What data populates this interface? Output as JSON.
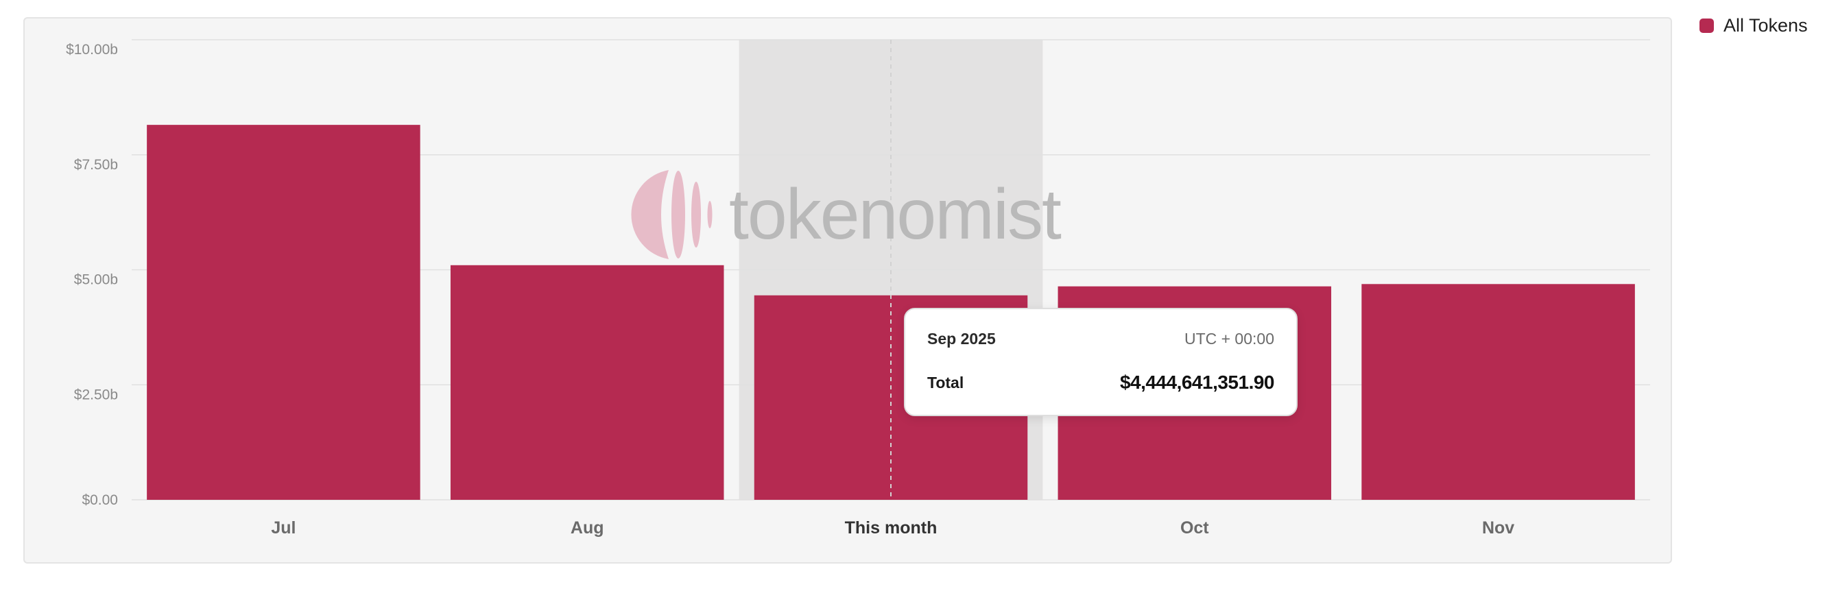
{
  "legend": {
    "label": "All Tokens",
    "color": "#b52a51"
  },
  "watermark": {
    "text": "tokenomist"
  },
  "tooltip": {
    "period": "Sep 2025",
    "timezone": "UTC + 00:00",
    "total_label": "Total",
    "total_value": "$4,444,641,351.90"
  },
  "colors": {
    "bar": "#b52a51",
    "highlight": "#e3e2e2",
    "grid": "#e0e0e0",
    "tick_text": "#8a8a8a",
    "category_text": "#6a6a6a",
    "category_active_text": "#333333"
  },
  "chart_data": {
    "type": "bar",
    "categories": [
      "Jul",
      "Aug",
      "This month",
      "Oct",
      "Nov"
    ],
    "highlighted_category": "This month",
    "series": [
      {
        "name": "All Tokens",
        "values": [
          8.15,
          5.1,
          4.444641,
          4.64,
          4.69
        ]
      }
    ],
    "y_ticks": [
      "$0.00",
      "$2.50b",
      "$5.00b",
      "$7.50b",
      "$10.00b"
    ],
    "y_tick_values": [
      0,
      2.5,
      5,
      7.5,
      10
    ],
    "ylim": [
      0,
      10
    ],
    "yunit": "billions USD",
    "grid": true,
    "legend_position": "top-right"
  }
}
